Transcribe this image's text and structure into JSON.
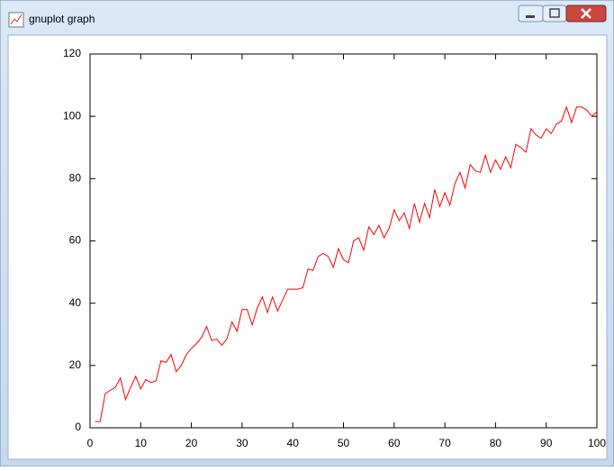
{
  "window": {
    "title": "gnuplot graph"
  },
  "chart_data": {
    "type": "line",
    "x": [
      1,
      2,
      3,
      4,
      5,
      6,
      7,
      8,
      9,
      10,
      11,
      12,
      13,
      14,
      15,
      16,
      17,
      18,
      19,
      20,
      21,
      22,
      23,
      24,
      25,
      26,
      27,
      28,
      29,
      30,
      31,
      32,
      33,
      34,
      35,
      36,
      37,
      38,
      39,
      40,
      41,
      42,
      43,
      44,
      45,
      46,
      47,
      48,
      49,
      50,
      51,
      52,
      53,
      54,
      55,
      56,
      57,
      58,
      59,
      60,
      61,
      62,
      63,
      64,
      65,
      66,
      67,
      68,
      69,
      70,
      71,
      72,
      73,
      74,
      75,
      76,
      77,
      78,
      79,
      80,
      81,
      82,
      83,
      84,
      85,
      86,
      87,
      88,
      89,
      90,
      91,
      92,
      93,
      94,
      95,
      96,
      97,
      98,
      99,
      100
    ],
    "series": [
      {
        "color": "#ff0000",
        "values": [
          2,
          2,
          11,
          12,
          13,
          16,
          9,
          13,
          16.5,
          12.5,
          15.5,
          14.5,
          15,
          21.5,
          21,
          23.5,
          18,
          20,
          23.5,
          25.5,
          27,
          29,
          32.5,
          28,
          28.5,
          26.5,
          28.5,
          34,
          31,
          38,
          38,
          33,
          38.5,
          42,
          37,
          42,
          37.5,
          41,
          44.5,
          44.5,
          44.5,
          45,
          51,
          50.5,
          55,
          56,
          55,
          51.5,
          57.5,
          54,
          53,
          60,
          61,
          57,
          64.5,
          62,
          65,
          61,
          64,
          70,
          66.5,
          69,
          64,
          72,
          66,
          72,
          67.5,
          76.5,
          71,
          75.5,
          71.5,
          78.5,
          82,
          77,
          84.5,
          82.5,
          82,
          87.5,
          82,
          86,
          83,
          87,
          83.5,
          91,
          90,
          88.5,
          96,
          94,
          93,
          96,
          94.5,
          97.5,
          98.5,
          103,
          98,
          103,
          103,
          102,
          100,
          101.5
        ]
      }
    ],
    "xlim": [
      0,
      100
    ],
    "xticks": [
      0,
      10,
      20,
      30,
      40,
      50,
      60,
      70,
      80,
      90,
      100
    ],
    "ylim": [
      0,
      120
    ],
    "yticks": [
      0,
      20,
      40,
      60,
      80,
      100,
      120
    ]
  }
}
